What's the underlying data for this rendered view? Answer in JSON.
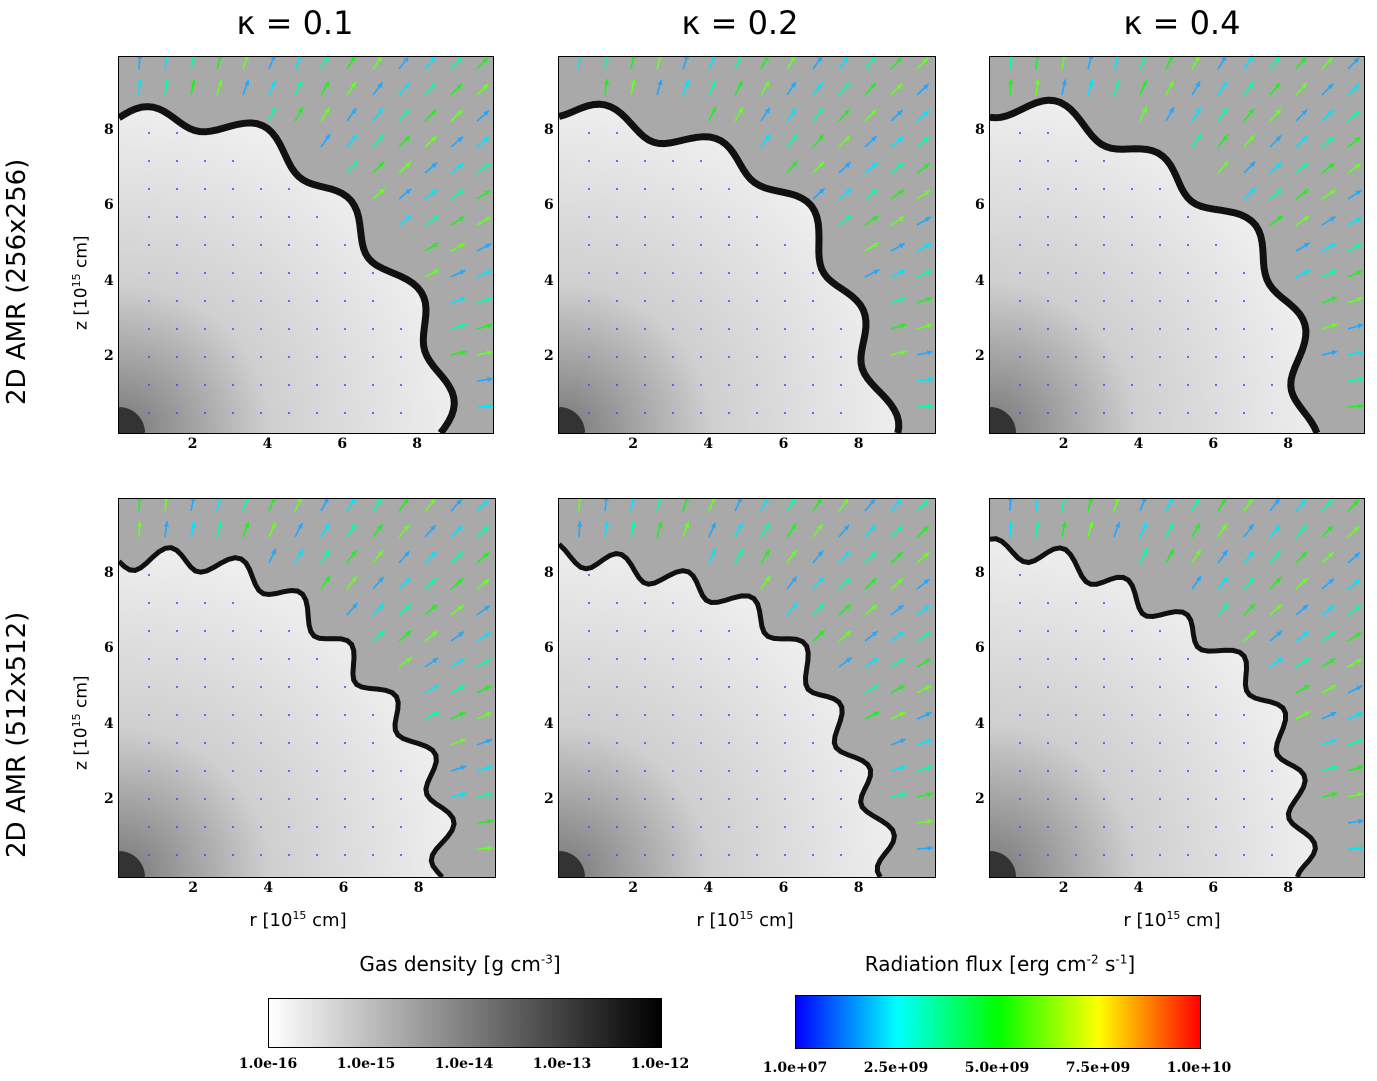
{
  "columns": [
    {
      "kappa": "κ = 0.1"
    },
    {
      "kappa": "κ = 0.2"
    },
    {
      "kappa": "κ = 0.4"
    }
  ],
  "rows": [
    {
      "label": "2D AMR (256x256)"
    },
    {
      "label": "2D AMR (512x512)"
    }
  ],
  "axes": {
    "z_label_pre": "z [10",
    "z_label_exp": "15",
    "z_label_post": " cm]",
    "r_label_pre": "r [10",
    "r_label_exp": "15",
    "r_label_post": " cm]",
    "x_ticks": [
      "2",
      "4",
      "6",
      "8"
    ],
    "y_ticks": [
      "2",
      "4",
      "6",
      "8"
    ]
  },
  "colorbars": {
    "density": {
      "title_pre": "Gas density [g cm",
      "title_exp": "-3",
      "title_post": "]",
      "ticks": [
        "1.0e-16",
        "1.0e-15",
        "1.0e-14",
        "1.0e-13",
        "1.0e-12"
      ],
      "colors": [
        "#ffffff",
        "#000000"
      ]
    },
    "flux": {
      "title_pre": "Radiation flux [erg  cm",
      "title_exp1": "-2",
      "title_mid": " s",
      "title_exp2": "-1",
      "title_post": "]",
      "ticks": [
        "1.0e+07",
        "2.5e+09",
        "5.0e+09",
        "7.5e+09",
        "1.0e+10"
      ],
      "colors": [
        "#0000ff",
        "#00ffff",
        "#00ff00",
        "#ffff00",
        "#ff0000"
      ]
    }
  }
}
